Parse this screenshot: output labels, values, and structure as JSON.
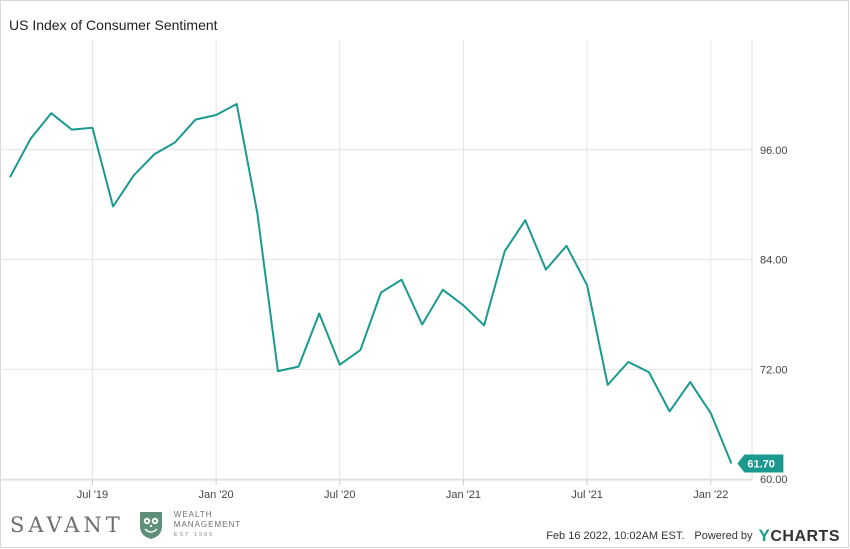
{
  "chart_data": {
    "type": "line",
    "title": "US Index of Consumer Sentiment",
    "series": [
      {
        "color": "#1a9a8f",
        "points": [
          [
            "2019-03",
            93.0
          ],
          [
            "2019-04",
            97.2
          ],
          [
            "2019-05",
            100.0
          ],
          [
            "2019-06",
            98.2
          ],
          [
            "2019-07",
            98.4
          ],
          [
            "2019-08",
            89.8
          ],
          [
            "2019-09",
            93.2
          ],
          [
            "2019-10",
            95.5
          ],
          [
            "2019-11",
            96.8
          ],
          [
            "2019-12",
            99.3
          ],
          [
            "2020-01",
            99.8
          ],
          [
            "2020-02",
            101.0
          ],
          [
            "2020-03",
            89.1
          ],
          [
            "2020-04",
            71.8
          ],
          [
            "2020-05",
            72.3
          ],
          [
            "2020-06",
            78.1
          ],
          [
            "2020-07",
            72.5
          ],
          [
            "2020-08",
            74.1
          ],
          [
            "2020-09",
            80.4
          ],
          [
            "2020-10",
            81.8
          ],
          [
            "2020-11",
            76.9
          ],
          [
            "2020-12",
            80.7
          ],
          [
            "2021-01",
            79.0
          ],
          [
            "2021-02",
            76.8
          ],
          [
            "2021-03",
            84.9
          ],
          [
            "2021-04",
            88.3
          ],
          [
            "2021-05",
            82.9
          ],
          [
            "2021-06",
            85.5
          ],
          [
            "2021-07",
            81.2
          ],
          [
            "2021-08",
            70.3
          ],
          [
            "2021-09",
            72.8
          ],
          [
            "2021-10",
            71.7
          ],
          [
            "2021-11",
            67.4
          ],
          [
            "2021-12",
            70.6
          ],
          [
            "2022-01",
            67.2
          ],
          [
            "2022-02",
            61.7
          ]
        ]
      }
    ],
    "x_ticks": [
      {
        "date": "2019-07",
        "label": "Jul '19"
      },
      {
        "date": "2020-01",
        "label": "Jan '20"
      },
      {
        "date": "2020-07",
        "label": "Jul '20"
      },
      {
        "date": "2021-01",
        "label": "Jan '21"
      },
      {
        "date": "2021-07",
        "label": "Jul '21"
      },
      {
        "date": "2022-01",
        "label": "Jan '22"
      }
    ],
    "y_ticks": [
      {
        "value": 60,
        "label": "60.00"
      },
      {
        "value": 72,
        "label": "72.00"
      },
      {
        "value": 84,
        "label": "84.00"
      },
      {
        "value": 96,
        "label": "96.00"
      }
    ],
    "last_value_label": "61.70",
    "ylim": [
      59.9,
      108
    ],
    "xlim": [
      "2019-03",
      "2022-03"
    ],
    "grid": true,
    "y_axis_position": "right"
  },
  "footer": {
    "timestamp": "Feb 16 2022, 10:02AM EST.",
    "powered_by": "Powered by",
    "brand_y": "Y",
    "brand_rest": "CHARTS",
    "brand_colors": {
      "teal": "#1a9a8f"
    }
  },
  "logo": {
    "name": "SAVANT",
    "line1": "WEALTH",
    "line2": "MANAGEMENT",
    "est": "EST 1986",
    "icon": "owl-crest-icon"
  }
}
